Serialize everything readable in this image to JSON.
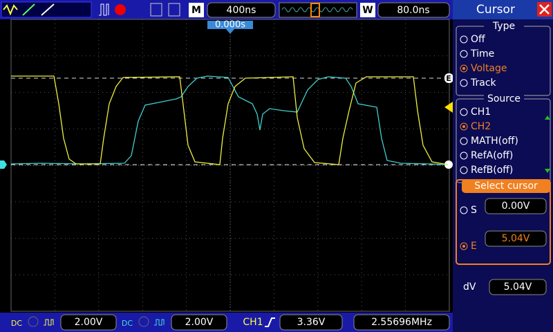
{
  "toolbar": {
    "timebase_label": "M",
    "timebase": "400ns",
    "window_label": "W",
    "window": "80.0ns",
    "trigger_position": "0.000s"
  },
  "screen": {
    "cursor_marker": "E"
  },
  "menu": {
    "title": "Cursor",
    "type": {
      "heading": "Type",
      "options": [
        "Off",
        "Time",
        "Voltage",
        "Track"
      ],
      "selected": 2
    },
    "source": {
      "heading": "Source",
      "options": [
        "CH1",
        "CH2",
        "MATH(off)",
        "RefA(off)",
        "RefB(off)"
      ],
      "selected": 1
    },
    "select_cursor": {
      "heading": "Select cursor",
      "s_label": "S",
      "s_value": "0.00V",
      "e_label": "E",
      "e_value": "5.04V"
    },
    "delta": {
      "label": "dV",
      "value": "5.04V"
    }
  },
  "status_bar": {
    "ch1_coupling": "DC",
    "ch1_scale": "2.00V",
    "ch2_coupling": "DC",
    "ch2_scale": "2.00V",
    "trigger_source": "CH1",
    "trigger_level": "3.36V",
    "frequency": "2.55696MHz"
  }
}
